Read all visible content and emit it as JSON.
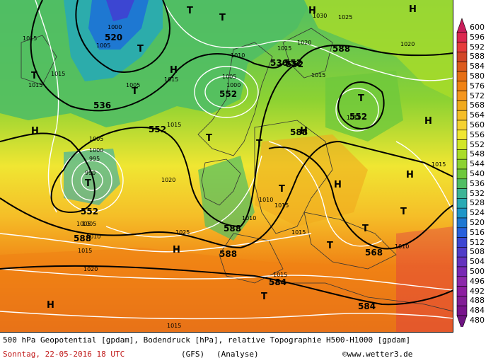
{
  "map": {
    "caption": "500 hPa Geopotential [gpdam], Bodendruck [hPa], relative Topographie H500-H1000 [gpdam]",
    "date": "Sonntag, 22-05-2016  18 UTC",
    "model": "(GFS)",
    "analysis": "(Analyse)",
    "credit": "©www.wetter3.de",
    "pressure_centers": [
      {
        "letter": "T"
      },
      {
        "letter": "T"
      },
      {
        "letter": "T"
      },
      {
        "letter": "T"
      },
      {
        "letter": "T"
      },
      {
        "letter": "T"
      },
      {
        "letter": "T"
      },
      {
        "letter": "T"
      },
      {
        "letter": "T"
      },
      {
        "letter": "T"
      },
      {
        "letter": "T"
      },
      {
        "letter": "T"
      },
      {
        "letter": "T"
      },
      {
        "letter": "T"
      },
      {
        "letter": "H"
      },
      {
        "letter": "H"
      },
      {
        "letter": "H"
      },
      {
        "letter": "H"
      },
      {
        "letter": "H"
      },
      {
        "letter": "H"
      },
      {
        "letter": "H"
      },
      {
        "letter": "H"
      },
      {
        "letter": "H"
      },
      {
        "letter": "H"
      }
    ],
    "geopotential_labels": [
      "520",
      "536",
      "552",
      "552",
      "536",
      "552",
      "552",
      "588",
      "552",
      "552",
      "588",
      "588",
      "588",
      "568",
      "584",
      "584",
      "588"
    ],
    "pressure_labels": [
      "1000",
      "1005",
      "1015",
      "1015",
      "1015",
      "1005",
      "1015",
      "1010",
      "1005",
      "1000",
      "1015",
      "1030",
      "1025",
      "1020",
      "1015",
      "1020",
      "1005",
      "1000",
      "995",
      "990",
      "1005",
      "1020",
      "1015",
      "1010",
      "1005",
      "1010",
      "1015",
      "1025",
      "1010",
      "1010",
      "1015",
      "1015",
      "1020",
      "1015",
      "1015",
      "1010",
      "1015"
    ]
  },
  "legend": {
    "values": [
      "600",
      "596",
      "592",
      "588",
      "584",
      "580",
      "576",
      "572",
      "568",
      "564",
      "560",
      "556",
      "552",
      "548",
      "544",
      "540",
      "536",
      "532",
      "528",
      "524",
      "520",
      "516",
      "512",
      "508",
      "504",
      "500",
      "496",
      "492",
      "488",
      "484",
      "480"
    ],
    "colors": [
      "#c81e5a",
      "#dc2850",
      "#e63c3c",
      "#d24628",
      "#dc5a1e",
      "#e66e14",
      "#f08214",
      "#f5961e",
      "#f0aa1e",
      "#f5be28",
      "#f5d232",
      "#f0e632",
      "#d2e628",
      "#aadc28",
      "#8cd232",
      "#6ec83c",
      "#50be64",
      "#3cb496",
      "#28aab4",
      "#1e96c8",
      "#1e78d2",
      "#2860dc",
      "#3c46d2",
      "#503cc8",
      "#6432be",
      "#7828b4",
      "#8c28aa",
      "#8c1ea0",
      "#821e96",
      "#78148c",
      "#6e1482"
    ]
  }
}
